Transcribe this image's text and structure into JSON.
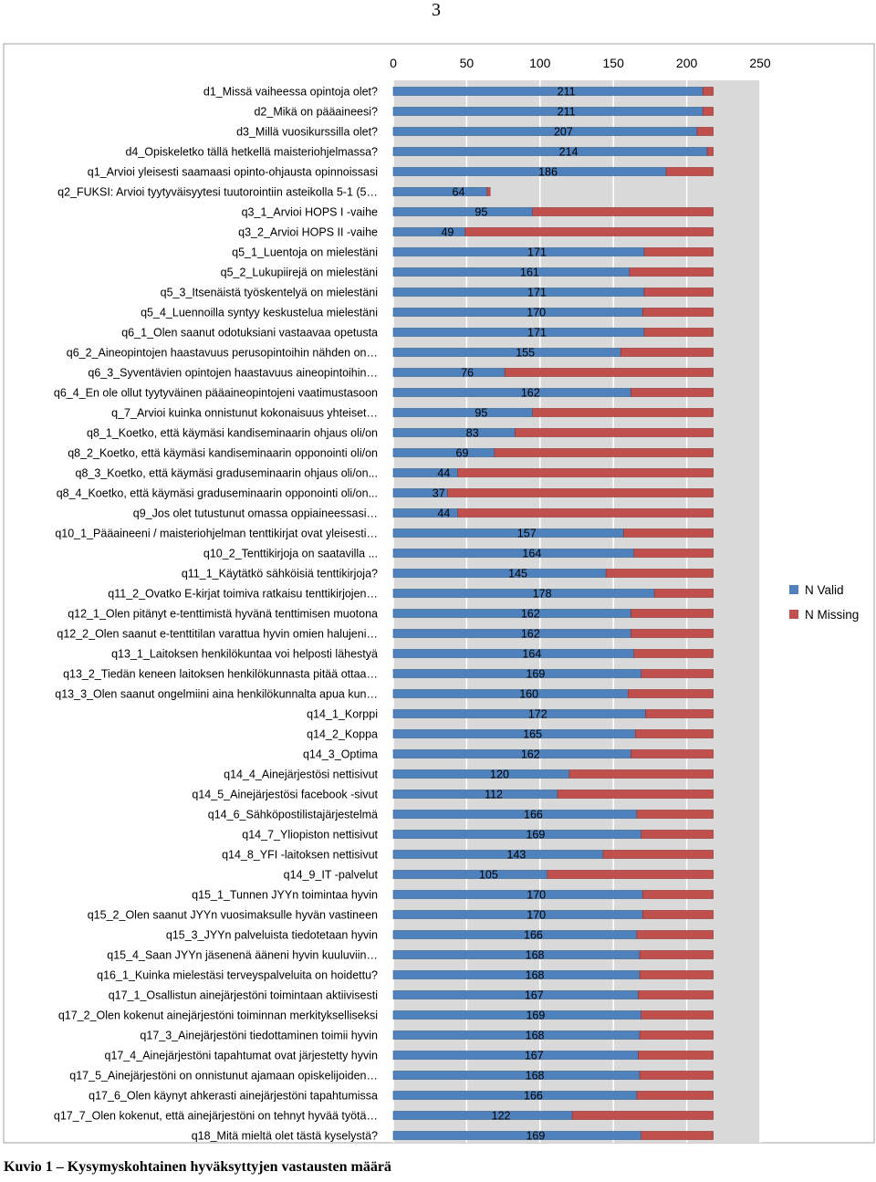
{
  "page_number": "3",
  "caption": "Kuvio 1 – Kysymyskohtainen hyväksyttyjen vastausten määrä",
  "chart_data": {
    "type": "bar",
    "orientation": "horizontal",
    "stacked": true,
    "title": "",
    "xlim": [
      0,
      250
    ],
    "xticks": [
      "0",
      "50",
      "100",
      "150",
      "200",
      "250"
    ],
    "xtick_values": [
      0,
      50,
      100,
      150,
      200,
      250
    ],
    "gridlines": true,
    "legend_position": "right",
    "categories": [
      "d1_Missä vaiheessa opintoja olet?",
      "d2_Mikä on pääaineesi?",
      "d3_Millä vuosikurssilla olet?",
      "d4_Opiskeletko tällä hetkellä maisteriohjelmassa?",
      "q1_Arvioi yleisesti saamaasi opinto-ohjausta opinnoissasi",
      "q2_FUKSI: Arvioi tyytyväisyytesi tuutorointiin asteikolla 5-1 (5…",
      "q3_1_Arvioi HOPS I -vaihe",
      "q3_2_Arvioi HOPS II -vaihe",
      "q5_1_Luentoja on mielestäni",
      "q5_2_Lukupiirejä on mielestäni",
      "q5_3_Itsenäistä työskentelyä on mielestäni",
      "q5_4_Luennoilla syntyy keskustelua mielestäni",
      "q6_1_Olen saanut odotuksiani vastaavaa opetusta",
      "q6_2_Aineopintojen haastavuus perusopintoihin nähden on…",
      "q6_3_Syventävien opintojen haastavuus aineopintoihin…",
      "q6_4_En ole ollut tyytyväinen pääaineopintojeni vaatimustasoon",
      "q_7_Arvioi kuinka onnistunut kokonaisuus yhteiset…",
      "q8_1_Koetko, että käymäsi kandiseminaarin ohjaus oli/on",
      "q8_2_Koetko, että käymäsi kandiseminaarin opponointi oli/on",
      "q8_3_Koetko, että käymäsi graduseminaarin ohjaus oli/on...",
      "q8_4_Koetko, että käymäsi graduseminaarin opponointi oli/on...",
      "q9_Jos olet tutustunut omassa oppiaineessasi…",
      "q10_1_Pääaineeni / maisteriohjelman tenttikirjat ovat yleisesti…",
      "q10_2_Tenttikirjoja on saatavilla ...",
      "q11_1_Käytätkö sähköisiä tenttikirjoja?",
      "q11_2_Ovatko E-kirjat toimiva ratkaisu tenttikirjojen…",
      "q12_1_Olen pitänyt e-tenttimistä hyvänä tenttimisen muotona",
      "q12_2_Olen saanut e-tenttitilan varattua hyvin omien halujeni…",
      "q13_1_Laitoksen henkilökuntaa voi helposti lähestyä",
      "q13_2_Tiedän keneen laitoksen henkilökunnasta pitää ottaa…",
      "q13_3_Olen saanut ongelmiini aina henkilökunnalta apua kun…",
      "q14_1_Korppi",
      "q14_2_Koppa",
      "q14_3_Optima",
      "q14_4_Ainejärjestösi nettisivut",
      "q14_5_Ainejärjestösi facebook -sivut",
      "q14_6_Sähköpostilistajärjestelmä",
      "q14_7_Yliopiston nettisivut",
      "q14_8_YFI -laitoksen nettisivut",
      "q14_9_IT -palvelut",
      "q15_1_Tunnen JYYn toimintaa hyvin",
      "q15_2_Olen saanut JYYn vuosimaksulle hyvän vastineen",
      "q15_3_JYYn palveluista tiedotetaan hyvin",
      "q15_4_Saan JYYn jäsenenä ääneni hyvin kuuluviin…",
      "q16_1_Kuinka mielestäsi terveyspalveluita on hoidettu?",
      "q17_1_Osallistun ainejärjestöni toimintaan aktiivisesti",
      "q17_2_Olen kokenut ainejärjestöni toiminnan merkitykselliseksi",
      "q17_3_Ainejärjestöni tiedottaminen toimii hyvin",
      "q17_4_Ainejärjestöni tapahtumat ovat järjestetty hyvin",
      "q17_5_Ainejärjestöni on onnistunut ajamaan opiskelijoiden…",
      "q17_6_Olen käynyt ahkerasti ainejärjestöni tapahtumissa",
      "q17_7_Olen kokenut, että ainejärjestöni on tehnyt hyvää työtä…",
      "q18_Mitä mieltä olet tästä kyselystä?"
    ],
    "series": [
      {
        "name": "N Valid",
        "color": "#4f81bd",
        "values": [
          211,
          211,
          207,
          214,
          186,
          64,
          95,
          49,
          171,
          161,
          171,
          170,
          171,
          155,
          76,
          162,
          95,
          83,
          69,
          44,
          37,
          44,
          157,
          164,
          145,
          178,
          162,
          162,
          164,
          169,
          160,
          172,
          165,
          162,
          120,
          112,
          166,
          169,
          143,
          105,
          170,
          170,
          166,
          168,
          168,
          167,
          169,
          168,
          167,
          168,
          166,
          122,
          169
        ]
      },
      {
        "name": "N Missing",
        "color": "#c0504d",
        "values": [
          7,
          7,
          11,
          4,
          32,
          2,
          123,
          169,
          47,
          57,
          47,
          48,
          47,
          63,
          142,
          56,
          123,
          135,
          149,
          174,
          181,
          174,
          61,
          54,
          73,
          40,
          56,
          56,
          54,
          49,
          58,
          46,
          53,
          56,
          98,
          106,
          52,
          49,
          75,
          113,
          48,
          48,
          52,
          50,
          50,
          51,
          49,
          50,
          51,
          50,
          52,
          96,
          49
        ]
      }
    ],
    "legend": [
      "N Valid",
      "N Missing"
    ]
  }
}
